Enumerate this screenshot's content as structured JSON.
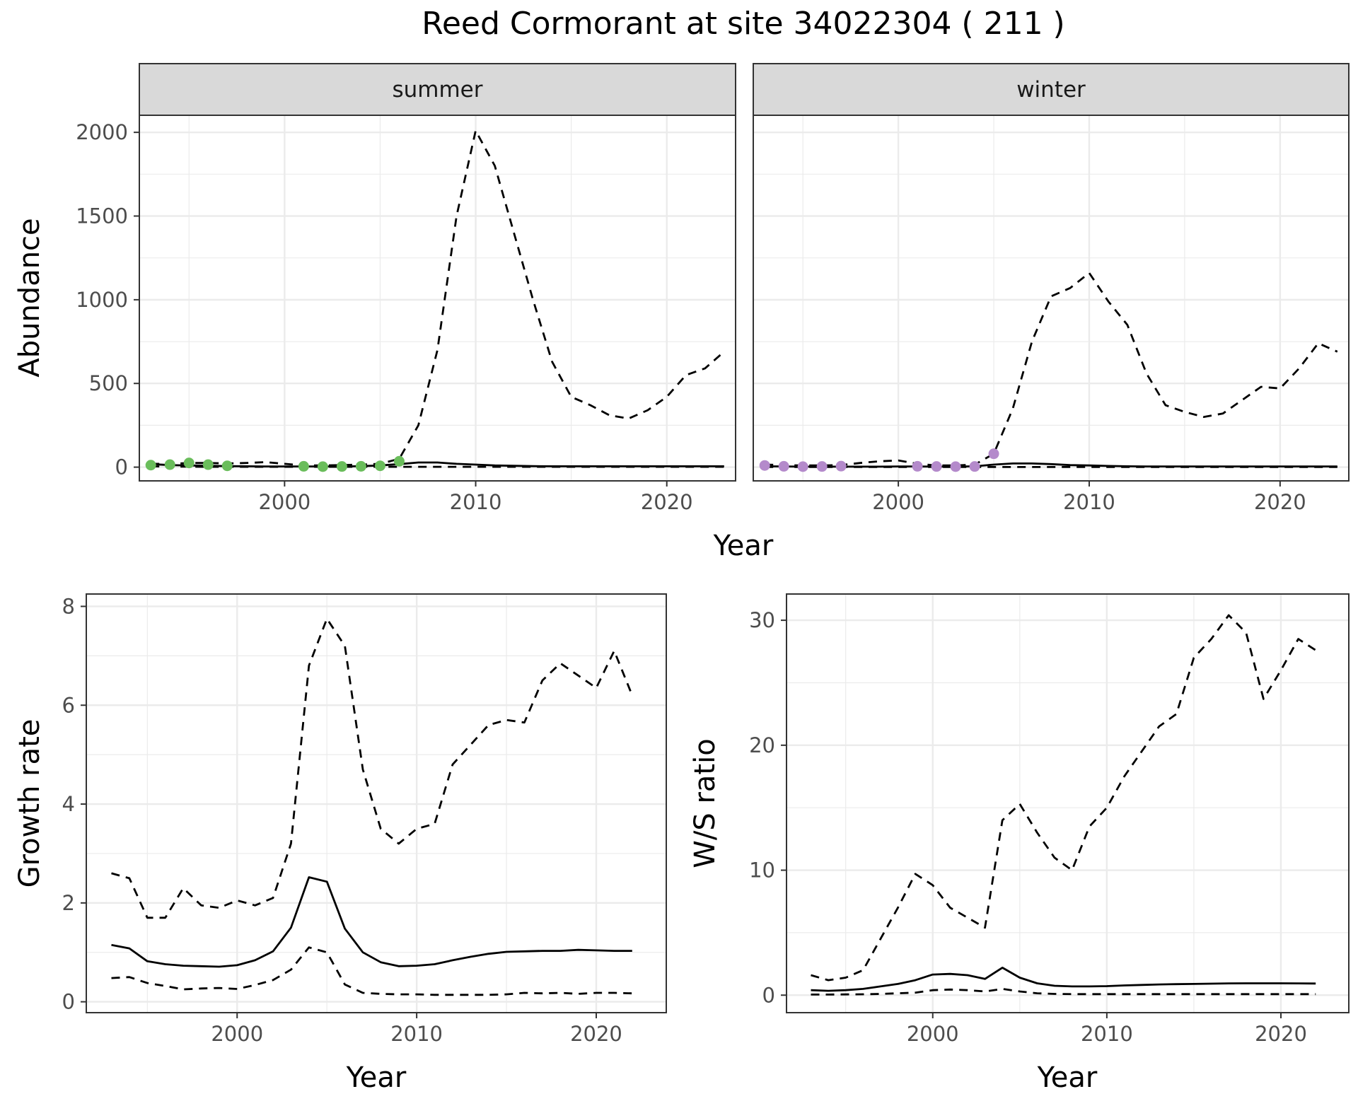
{
  "title": "Reed Cormorant at site 34022304 ( 211 )",
  "colors": {
    "summer_points": "#6ABD5B",
    "winter_points": "#B48ACB",
    "strip_fill": "#D9D9D9",
    "grid": "#EBEBEB",
    "line": "#000000"
  },
  "chart_data": [
    {
      "id": "abundance",
      "type": "line",
      "title": "Reed Cormorant at site 34022304 ( 211 )",
      "xlabel": "Year",
      "ylabel": "Abundance",
      "xlim": [
        1992.4,
        2023.6
      ],
      "ylim": [
        -82,
        2102
      ],
      "xticks": [
        2000,
        2010,
        2020
      ],
      "yticks": [
        0,
        500,
        1000,
        1500,
        2000
      ],
      "panels": [
        {
          "strip": "summer",
          "x": [
            1993,
            1994,
            1995,
            1996,
            1997,
            1998,
            1999,
            2000,
            2001,
            2002,
            2003,
            2004,
            2005,
            2006,
            2007,
            2008,
            2009,
            2010,
            2011,
            2012,
            2013,
            2014,
            2015,
            2016,
            2017,
            2018,
            2019,
            2020,
            2021,
            2022,
            2023
          ],
          "series": [
            {
              "name": "upper",
              "style": "dashed",
              "values": [
                20,
                20,
                25,
                25,
                22,
                25,
                30,
                20,
                10,
                10,
                12,
                15,
                20,
                50,
                250,
                700,
                1500,
                2010,
                1800,
                1400,
                1000,
                630,
                420,
                370,
                310,
                290,
                340,
                420,
                550,
                590,
                690
              ]
            },
            {
              "name": "mean",
              "style": "solid",
              "values": [
                18,
                12,
                10,
                8,
                6,
                5,
                4,
                4,
                4,
                4,
                4,
                6,
                10,
                18,
                28,
                28,
                20,
                15,
                10,
                8,
                6,
                5,
                5,
                5,
                5,
                5,
                5,
                5,
                5,
                5,
                5
              ]
            },
            {
              "name": "lower",
              "style": "dashed",
              "values": [
                5,
                3,
                3,
                2,
                2,
                2,
                2,
                2,
                2,
                2,
                2,
                2,
                2,
                2,
                2,
                2,
                2,
                2,
                2,
                2,
                2,
                2,
                2,
                2,
                2,
                2,
                2,
                2,
                2,
                2,
                2
              ]
            }
          ],
          "points": {
            "x": [
              1993,
              1994,
              1995,
              1996,
              1997,
              2001,
              2002,
              2003,
              2004,
              2005,
              2006
            ],
            "y": [
              12,
              15,
              25,
              15,
              8,
              5,
              3,
              4,
              5,
              8,
              35
            ]
          }
        },
        {
          "strip": "winter",
          "x": [
            1993,
            1994,
            1995,
            1996,
            1997,
            1998,
            1999,
            2000,
            2001,
            2002,
            2003,
            2004,
            2005,
            2006,
            2007,
            2008,
            2009,
            2010,
            2011,
            2012,
            2013,
            2014,
            2015,
            2016,
            2017,
            2018,
            2019,
            2020,
            2021,
            2022,
            2023
          ],
          "series": [
            {
              "name": "upper",
              "style": "dashed",
              "values": [
                15,
                12,
                10,
                10,
                12,
                25,
                35,
                40,
                20,
                10,
                10,
                15,
                80,
                350,
                750,
                1020,
                1070,
                1160,
                990,
                850,
                560,
                370,
                330,
                300,
                320,
                400,
                480,
                470,
                590,
                740,
                690
              ]
            },
            {
              "name": "mean",
              "style": "solid",
              "values": [
                5,
                4,
                3,
                3,
                3,
                3,
                3,
                4,
                4,
                3,
                3,
                5,
                15,
                22,
                22,
                18,
                12,
                10,
                7,
                5,
                4,
                4,
                4,
                4,
                4,
                4,
                4,
                4,
                4,
                4,
                4
              ]
            },
            {
              "name": "lower",
              "style": "dashed",
              "values": [
                1,
                1,
                1,
                1,
                1,
                1,
                1,
                1,
                1,
                1,
                1,
                1,
                1,
                1,
                1,
                1,
                1,
                1,
                1,
                1,
                1,
                1,
                1,
                1,
                1,
                1,
                1,
                1,
                1,
                1,
                1
              ]
            }
          ],
          "points": {
            "x": [
              1993,
              1994,
              1995,
              1996,
              1997,
              2001,
              2002,
              2003,
              2004,
              2005
            ],
            "y": [
              10,
              5,
              3,
              4,
              6,
              5,
              4,
              3,
              4,
              80
            ]
          }
        }
      ]
    },
    {
      "id": "growth",
      "type": "line",
      "xlabel": "Year",
      "ylabel": "Growth rate",
      "xlim": [
        1991.6,
        2023.9
      ],
      "ylim": [
        -0.22,
        8.25
      ],
      "xticks": [
        2000,
        2010,
        2020
      ],
      "yticks": [
        0,
        2,
        4,
        6,
        8
      ],
      "x": [
        1993,
        1994,
        1995,
        1996,
        1997,
        1998,
        1999,
        2000,
        2001,
        2002,
        2003,
        2004,
        2005,
        2006,
        2007,
        2008,
        2009,
        2010,
        2011,
        2012,
        2013,
        2014,
        2015,
        2016,
        2017,
        2018,
        2019,
        2020,
        2021,
        2022
      ],
      "series": [
        {
          "name": "upper",
          "style": "dashed",
          "values": [
            2.6,
            2.5,
            1.7,
            1.7,
            2.3,
            1.95,
            1.9,
            2.05,
            1.95,
            2.1,
            3.2,
            6.8,
            7.75,
            7.2,
            4.7,
            3.5,
            3.2,
            3.5,
            3.6,
            4.8,
            5.2,
            5.6,
            5.7,
            5.65,
            6.5,
            6.85,
            6.6,
            6.35,
            7.1,
            6.2
          ]
        },
        {
          "name": "mean",
          "style": "solid",
          "values": [
            1.15,
            1.08,
            0.82,
            0.76,
            0.73,
            0.72,
            0.71,
            0.74,
            0.84,
            1.02,
            1.5,
            2.52,
            2.43,
            1.48,
            1.0,
            0.8,
            0.72,
            0.73,
            0.76,
            0.84,
            0.91,
            0.97,
            1.01,
            1.02,
            1.03,
            1.03,
            1.05,
            1.04,
            1.03,
            1.03
          ]
        },
        {
          "name": "lower",
          "style": "dashed",
          "values": [
            0.48,
            0.5,
            0.38,
            0.32,
            0.25,
            0.27,
            0.28,
            0.26,
            0.34,
            0.44,
            0.65,
            1.1,
            1.0,
            0.35,
            0.18,
            0.16,
            0.15,
            0.15,
            0.14,
            0.14,
            0.14,
            0.14,
            0.15,
            0.18,
            0.17,
            0.18,
            0.16,
            0.18,
            0.18,
            0.17
          ]
        }
      ]
    },
    {
      "id": "ratio",
      "type": "line",
      "xlabel": "Year",
      "ylabel": "W/S ratio",
      "xlim": [
        1991.6,
        2023.9
      ],
      "ylim": [
        -1.4,
        32.1
      ],
      "xticks": [
        2000,
        2010,
        2020
      ],
      "yticks": [
        0,
        10,
        20,
        30
      ],
      "x": [
        1993,
        1994,
        1995,
        1996,
        1997,
        1998,
        1999,
        2000,
        2001,
        2002,
        2003,
        2004,
        2005,
        2006,
        2007,
        2008,
        2009,
        2010,
        2011,
        2012,
        2013,
        2014,
        2015,
        2016,
        2017,
        2018,
        2019,
        2020,
        2021,
        2022
      ],
      "series": [
        {
          "name": "upper",
          "style": "dashed",
          "values": [
            1.6,
            1.2,
            1.4,
            2.0,
            4.5,
            7.0,
            9.7,
            8.8,
            7.0,
            6.2,
            5.4,
            14.0,
            15.3,
            13.0,
            11.0,
            10.0,
            13.5,
            15.0,
            17.5,
            19.5,
            21.5,
            22.5,
            27.0,
            28.5,
            30.4,
            29.0,
            23.7,
            26.0,
            28.5,
            27.6
          ]
        },
        {
          "name": "mean",
          "style": "solid",
          "values": [
            0.4,
            0.35,
            0.4,
            0.5,
            0.7,
            0.9,
            1.2,
            1.65,
            1.7,
            1.6,
            1.3,
            2.2,
            1.4,
            0.95,
            0.75,
            0.7,
            0.7,
            0.72,
            0.78,
            0.82,
            0.86,
            0.88,
            0.9,
            0.92,
            0.94,
            0.95,
            0.95,
            0.95,
            0.94,
            0.93
          ]
        },
        {
          "name": "lower",
          "style": "dashed",
          "values": [
            0.05,
            0.05,
            0.06,
            0.07,
            0.1,
            0.15,
            0.2,
            0.4,
            0.45,
            0.4,
            0.3,
            0.5,
            0.3,
            0.15,
            0.1,
            0.08,
            0.08,
            0.08,
            0.08,
            0.08,
            0.08,
            0.08,
            0.08,
            0.08,
            0.08,
            0.08,
            0.08,
            0.08,
            0.08,
            0.08
          ]
        }
      ]
    }
  ]
}
